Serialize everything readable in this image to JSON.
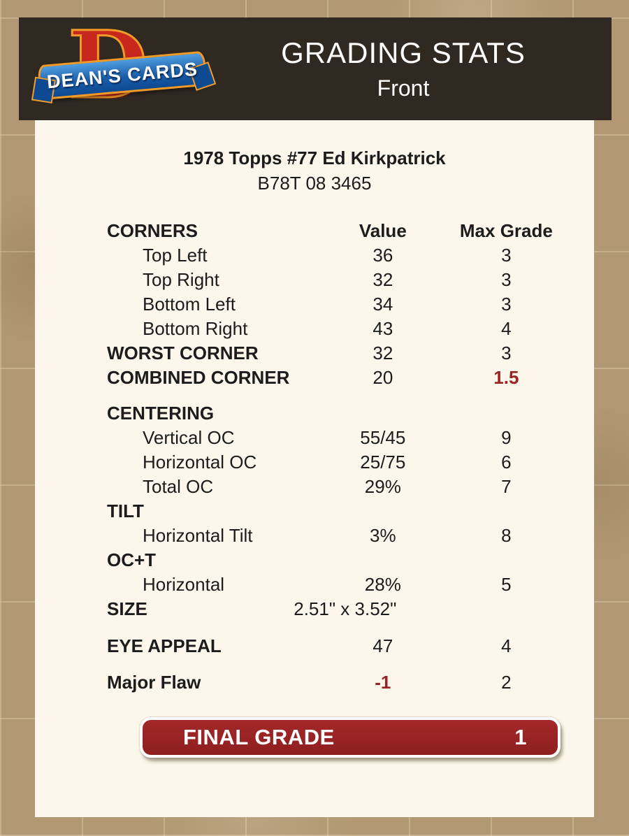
{
  "header": {
    "logo_letter": "D",
    "logo_text": "DEAN'S CARDS",
    "title": "GRADING STATS",
    "subtitle": "Front"
  },
  "card": {
    "title": "1978 Topps #77 Ed Kirkpatrick",
    "id": "B78T 08 3465"
  },
  "stats": {
    "header_row": {
      "label": "CORNERS",
      "value": "Value",
      "grade": "Max Grade"
    },
    "rows": [
      {
        "label": "Top Left",
        "value": "36",
        "grade": "3"
      },
      {
        "label": "Top Right",
        "value": "32",
        "grade": "3"
      },
      {
        "label": "Bottom Left",
        "value": "34",
        "grade": "3"
      },
      {
        "label": "Bottom Right",
        "value": "43",
        "grade": "4"
      },
      {
        "label": "WORST CORNER",
        "value": "32",
        "grade": "3"
      },
      {
        "label": "COMBINED CORNER",
        "value": "20",
        "grade": "1.5"
      },
      {
        "label": "CENTERING",
        "value": "",
        "grade": ""
      },
      {
        "label": "Vertical OC",
        "value": "55/45",
        "grade": "9"
      },
      {
        "label": "Horizontal OC",
        "value": "25/75",
        "grade": "6"
      },
      {
        "label": "Total OC",
        "value": "29%",
        "grade": "7"
      },
      {
        "label": "TILT",
        "value": "",
        "grade": ""
      },
      {
        "label": "Horizontal Tilt",
        "value": "3%",
        "grade": "8"
      },
      {
        "label": "OC+T",
        "value": "",
        "grade": ""
      },
      {
        "label": "Horizontal",
        "value": "28%",
        "grade": "5"
      },
      {
        "label": "SIZE",
        "value": "2.51\" x 3.52\"",
        "grade": ""
      },
      {
        "label": "EYE APPEAL",
        "value": "47",
        "grade": "4"
      },
      {
        "label": "Major Flaw",
        "value": "-1",
        "grade": "2"
      }
    ]
  },
  "final_grade": {
    "label": "FINAL GRADE",
    "value": "1"
  },
  "colors": {
    "page_background": "#b19773",
    "header_background": "#302922",
    "panel_background": "#fcf7ea",
    "accent_red": "#9a2424",
    "logo_red": "#c8271e",
    "logo_blue": "#1b5ea8",
    "logo_gold": "#f09b28",
    "text": "#1c1c1c"
  }
}
